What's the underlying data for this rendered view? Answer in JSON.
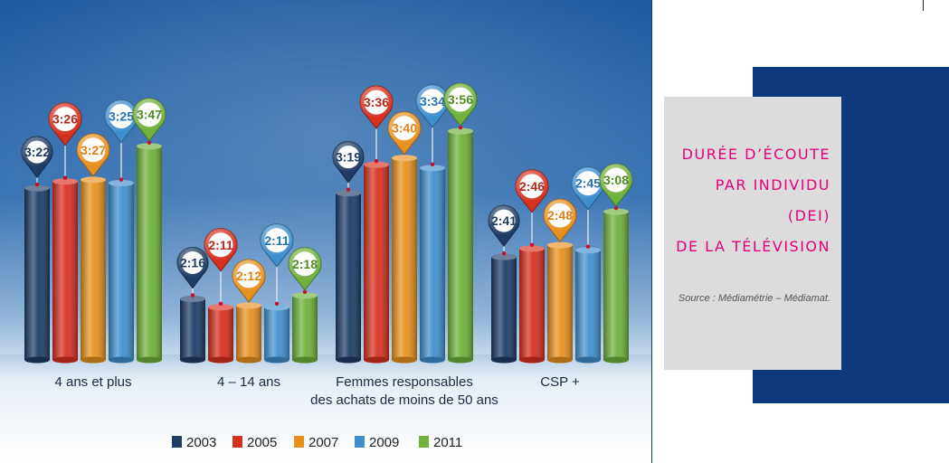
{
  "chart_data": {
    "type": "bar",
    "title": "",
    "xlabel": "",
    "ylabel": "",
    "grid": false,
    "legend_position": "bottom",
    "categories": [
      "4 ans et plus",
      "4 – 14 ans",
      "Femmes responsables|des achats de moins de 50 ans",
      "CSP +"
    ],
    "series": [
      {
        "name": "2003",
        "color": "#1e3c66",
        "values": [
          202,
          136,
          199,
          161
        ],
        "labels": [
          "3:22",
          "2:16",
          "3:19",
          "2:41"
        ]
      },
      {
        "name": "2005",
        "color": "#d6301e",
        "values": [
          206,
          131,
          216,
          166
        ],
        "labels": [
          "3:26",
          "2:11",
          "3:36",
          "2:46"
        ]
      },
      {
        "name": "2007",
        "color": "#e8901e",
        "values": [
          207,
          132,
          220,
          168
        ],
        "labels": [
          "3:27",
          "2:12",
          "3:40",
          "2:48"
        ]
      },
      {
        "name": "2009",
        "color": "#3f8fcf",
        "values": [
          205,
          131,
          214,
          165
        ],
        "labels": [
          "3:25",
          "2:11",
          "3:34",
          "2:45"
        ]
      },
      {
        "name": "2011",
        "color": "#6fb13a",
        "values": [
          227,
          138,
          236,
          188
        ],
        "labels": [
          "3:47",
          "2:18",
          "3:56",
          "3:08"
        ]
      }
    ]
  },
  "title_box": {
    "lines": [
      "DURÉE D’ÉCOUTE",
      "PAR INDIVIDU",
      "(DEI)",
      "DE LA TÉLÉVISION"
    ],
    "source": "Source : Médiamétrie – Médiamat."
  }
}
